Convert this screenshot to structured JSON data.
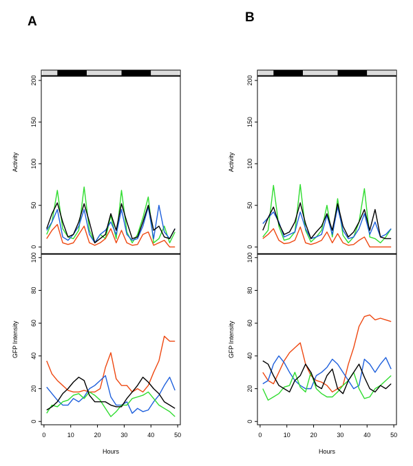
{
  "figure": {
    "x_label": "Hours",
    "x_ticks": [
      "0",
      "10",
      "20",
      "30",
      "40",
      "50"
    ]
  },
  "chart_data": [
    {
      "panel": "A",
      "light_bar": [
        {
          "state": "light",
          "from": -0.5,
          "to": 5
        },
        {
          "state": "dark",
          "from": 5,
          "to": 16
        },
        {
          "state": "light",
          "from": 16,
          "to": 29
        },
        {
          "state": "dark",
          "from": 29,
          "to": 40
        },
        {
          "state": "light",
          "from": 40,
          "to": 50.5
        }
      ],
      "top": {
        "type": "line",
        "ylabel": "Activity",
        "ylim": [
          -8,
          205
        ],
        "xlim": [
          -1,
          51
        ],
        "yticks": [
          "0",
          "50",
          "100",
          "150",
          "200"
        ],
        "x": [
          1,
          3,
          5,
          7,
          9,
          11,
          13,
          15,
          17,
          19,
          21,
          23,
          25,
          27,
          29,
          31,
          33,
          35,
          37,
          39,
          41,
          43,
          45,
          47,
          49
        ],
        "series": [
          {
            "name": "green",
            "color": "#2fdc2f",
            "values": [
              15,
              30,
              68,
              22,
              12,
              10,
              20,
              72,
              20,
              5,
              15,
              10,
              38,
              10,
              68,
              18,
              5,
              15,
              35,
              60,
              5,
              10,
              25,
              5,
              18
            ]
          },
          {
            "name": "blue",
            "color": "#1d5fdc",
            "values": [
              20,
              30,
              45,
              12,
              8,
              15,
              25,
              45,
              15,
              5,
              15,
              20,
              30,
              15,
              45,
              15,
              8,
              10,
              25,
              48,
              10,
              50,
              18,
              10,
              22
            ]
          },
          {
            "name": "orange",
            "color": "#ee4710",
            "values": [
              10,
              20,
              27,
              5,
              3,
              5,
              15,
              25,
              5,
              2,
              5,
              10,
              22,
              5,
              20,
              5,
              2,
              3,
              15,
              18,
              2,
              5,
              8,
              0,
              0
            ]
          },
          {
            "name": "black",
            "color": "#000000",
            "values": [
              22,
              40,
              53,
              30,
              12,
              15,
              30,
              52,
              30,
              5,
              10,
              15,
              40,
              20,
              52,
              30,
              10,
              12,
              30,
              50,
              20,
              25,
              12,
              10,
              22
            ]
          }
        ]
      },
      "bottom": {
        "type": "line",
        "ylabel": "GFP Intensity",
        "ylim": [
          -2,
          102
        ],
        "xlim": [
          -1,
          51
        ],
        "yticks": [
          "0",
          "20",
          "40",
          "60",
          "80",
          "100"
        ],
        "x": [
          1,
          3,
          5,
          7,
          9,
          11,
          13,
          15,
          17,
          19,
          21,
          23,
          25,
          27,
          29,
          31,
          33,
          35,
          37,
          39,
          41,
          43,
          45,
          47,
          49
        ],
        "series": [
          {
            "name": "orange",
            "color": "#ee4710",
            "values": [
              37,
              29,
              25,
              22,
              19,
              18,
              18,
              19,
              18,
              18,
              20,
              33,
              42,
              26,
              22,
              22,
              18,
              20,
              18,
              22,
              30,
              37,
              52,
              49,
              49
            ]
          },
          {
            "name": "blue",
            "color": "#1d5fdc",
            "values": [
              21,
              17,
              13,
              10,
              10,
              14,
              12,
              15,
              20,
              22,
              25,
              28,
              15,
              10,
              10,
              12,
              5,
              8,
              6,
              7,
              12,
              16,
              22,
              27,
              19
            ]
          },
          {
            "name": "green",
            "color": "#2fdc2f",
            "values": [
              5,
              10,
              9,
              12,
              13,
              16,
              17,
              14,
              18,
              16,
              13,
              8,
              3,
              6,
              10,
              10,
              14,
              15,
              16,
              18,
              14,
              10,
              8,
              6,
              3
            ]
          },
          {
            "name": "black",
            "color": "#000000",
            "values": [
              7,
              9,
              12,
              17,
              20,
              24,
              27,
              25,
              16,
              12,
              12,
              12,
              10,
              9,
              9,
              14,
              18,
              22,
              27,
              24,
              20,
              17,
              12,
              10,
              8
            ]
          }
        ]
      }
    },
    {
      "panel": "B",
      "light_bar": [
        {
          "state": "light",
          "from": -0.5,
          "to": 5
        },
        {
          "state": "dark",
          "from": 5,
          "to": 16
        },
        {
          "state": "light",
          "from": 16,
          "to": 29
        },
        {
          "state": "dark",
          "from": 29,
          "to": 40
        },
        {
          "state": "light",
          "from": 40,
          "to": 50.5
        }
      ],
      "top": {
        "type": "line",
        "ylabel": "Activity",
        "ylim": [
          -8,
          205
        ],
        "xlim": [
          -1,
          51
        ],
        "yticks": [
          "0",
          "50",
          "100",
          "150",
          "200"
        ],
        "x": [
          1,
          3,
          5,
          7,
          9,
          11,
          13,
          15,
          17,
          19,
          21,
          23,
          25,
          27,
          29,
          31,
          33,
          35,
          37,
          39,
          41,
          43,
          45,
          47,
          49
        ],
        "series": [
          {
            "name": "green",
            "color": "#2fdc2f",
            "values": [
              12,
              20,
              74,
              25,
              8,
              10,
              18,
              75,
              20,
              6,
              12,
              20,
              50,
              12,
              58,
              14,
              5,
              12,
              30,
              70,
              12,
              10,
              5,
              12,
              22
            ]
          },
          {
            "name": "blue",
            "color": "#1d5fdc",
            "values": [
              28,
              35,
              42,
              30,
              12,
              15,
              18,
              42,
              22,
              10,
              12,
              15,
              38,
              15,
              48,
              20,
              10,
              12,
              22,
              40,
              15,
              30,
              12,
              15,
              22
            ]
          },
          {
            "name": "orange",
            "color": "#ee4710",
            "values": [
              10,
              15,
              22,
              8,
              4,
              5,
              8,
              24,
              5,
              3,
              5,
              8,
              18,
              5,
              16,
              5,
              2,
              3,
              8,
              12,
              0,
              0,
              0,
              0,
              0
            ]
          },
          {
            "name": "black",
            "color": "#000000",
            "values": [
              20,
              35,
              48,
              28,
              15,
              18,
              30,
              53,
              28,
              10,
              18,
              25,
              40,
              20,
              52,
              25,
              12,
              18,
              30,
              45,
              20,
              45,
              12,
              10,
              10
            ]
          }
        ]
      },
      "bottom": {
        "type": "line",
        "ylabel": "GFP Intensity",
        "ylim": [
          -2,
          102
        ],
        "xlim": [
          -1,
          51
        ],
        "yticks": [
          "0",
          "20",
          "40",
          "60",
          "80",
          "100"
        ],
        "x": [
          1,
          3,
          5,
          7,
          9,
          11,
          13,
          15,
          17,
          19,
          21,
          23,
          25,
          27,
          29,
          31,
          33,
          35,
          37,
          39,
          41,
          43,
          45,
          47,
          49
        ],
        "series": [
          {
            "name": "orange",
            "color": "#ee4710",
            "values": [
              30,
              25,
              23,
              30,
              37,
              42,
              45,
              48,
              35,
              28,
              25,
              24,
              22,
              18,
              20,
              22,
              35,
              45,
              58,
              64,
              65,
              62,
              63,
              62,
              61
            ]
          },
          {
            "name": "blue",
            "color": "#1d5fdc",
            "values": [
              23,
              25,
              35,
              40,
              36,
              30,
              25,
              22,
              20,
              20,
              28,
              30,
              33,
              38,
              35,
              30,
              25,
              20,
              22,
              38,
              35,
              30,
              35,
              39,
              32
            ]
          },
          {
            "name": "green",
            "color": "#2fdc2f",
            "values": [
              20,
              13,
              15,
              17,
              21,
              22,
              30,
              21,
              18,
              30,
              20,
              17,
              15,
              15,
              18,
              22,
              25,
              30,
              20,
              14,
              15,
              20,
              22,
              25,
              28
            ]
          },
          {
            "name": "black",
            "color": "#000000",
            "values": [
              37,
              35,
              28,
              22,
              20,
              18,
              25,
              28,
              35,
              30,
              22,
              20,
              28,
              32,
              20,
              17,
              25,
              30,
              35,
              27,
              20,
              18,
              22,
              20,
              23
            ]
          }
        ]
      }
    }
  ]
}
